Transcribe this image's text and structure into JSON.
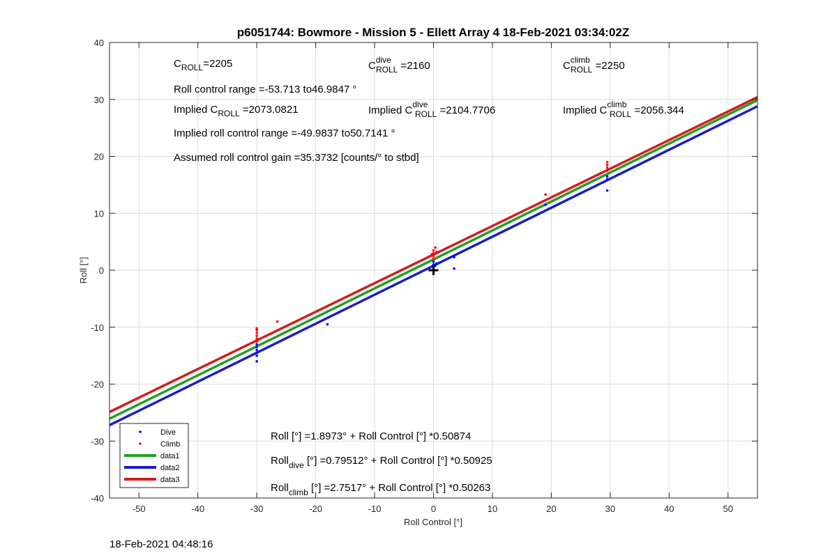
{
  "chart_data": {
    "type": "scatter",
    "title": "p6051744: Bowmore - Mission 5 - Ellett Array 4 18-Feb-2021 03:34:02Z",
    "xlabel": "Roll Control [°]",
    "ylabel": "Roll [°]",
    "xlim": [
      -55,
      55
    ],
    "ylim": [
      -40,
      40
    ],
    "xticks": [
      -50,
      -40,
      -30,
      -20,
      -10,
      0,
      10,
      20,
      30,
      40,
      50
    ],
    "yticks": [
      -40,
      -30,
      -20,
      -10,
      0,
      10,
      20,
      30,
      40
    ],
    "grid": true,
    "legend_position": "bottom-left",
    "colors": {
      "dive": "#0000ff",
      "climb": "#ff0000",
      "data1": "#20a020",
      "data2": "#1c1cc8",
      "data3": "#d41c1c",
      "marker": "#000000"
    },
    "series": [
      {
        "name": "Dive",
        "kind": "points",
        "points": [
          [
            -30,
            -15.0
          ],
          [
            -30,
            -16.0
          ],
          [
            -30,
            -14.5
          ],
          [
            -30,
            -14.0
          ],
          [
            -30,
            -13.5
          ],
          [
            -30,
            -13.0
          ],
          [
            -18,
            -9.5
          ],
          [
            0,
            0.5
          ],
          [
            0,
            1.0
          ],
          [
            0,
            1.5
          ],
          [
            0.3,
            0.8
          ],
          [
            0.5,
            1.2
          ],
          [
            3.5,
            2.3
          ],
          [
            3.5,
            0.3
          ],
          [
            19,
            11.5
          ],
          [
            29.5,
            14.0
          ],
          [
            29.5,
            16.0
          ],
          [
            29.5,
            16.5
          ]
        ]
      },
      {
        "name": "Climb",
        "kind": "points",
        "points": [
          [
            -30,
            -10.2
          ],
          [
            -30,
            -10.5
          ],
          [
            -30,
            -11.0
          ],
          [
            -30,
            -11.5
          ],
          [
            -30,
            -12.0
          ],
          [
            -30,
            -12.5
          ],
          [
            -26.5,
            -9.0
          ],
          [
            0,
            2.0
          ],
          [
            0,
            2.5
          ],
          [
            0,
            3.0
          ],
          [
            0,
            3.5
          ],
          [
            0.3,
            4.0
          ],
          [
            0.5,
            3.2
          ],
          [
            -0.3,
            2.8
          ],
          [
            19,
            13.3
          ],
          [
            29.5,
            17.5
          ],
          [
            29.5,
            18.0
          ],
          [
            29.5,
            18.5
          ],
          [
            29.5,
            19.0
          ]
        ]
      },
      {
        "name": "data1",
        "kind": "line",
        "intercept": 1.8973,
        "slope": 0.50874
      },
      {
        "name": "data2",
        "kind": "line",
        "intercept": 0.79512,
        "slope": 0.50925
      },
      {
        "name": "data3",
        "kind": "line",
        "intercept": 2.7517,
        "slope": 0.50263
      }
    ],
    "marker_point": [
      0,
      0
    ],
    "annotations": {
      "c_roll": {
        "base": "C",
        "sub": "ROLL",
        "value": "=2205"
      },
      "c_roll_dive": {
        "base": "C",
        "sup": "dive",
        "sub": "ROLL",
        "value": " =2160"
      },
      "c_roll_climb": {
        "base": "C",
        "sup": "climb",
        "sub": "ROLL",
        "value": " =2250"
      },
      "roll_range": "Roll control range =-53.713 to46.9847 °",
      "implied_c_roll": {
        "prefix": "Implied C",
        "sub": "ROLL",
        "value": " =2073.0821"
      },
      "implied_c_roll_dive": {
        "prefix": "Implied C",
        "sup": "dive",
        "sub": "ROLL",
        "value": " =2104.7706"
      },
      "implied_c_roll_climb": {
        "prefix": "Implied C",
        "sup": "climb",
        "sub": "ROLL",
        "value": " =2056.344"
      },
      "implied_range": "Implied roll control range =-49.9837 to50.7141 °",
      "gain": "Assumed roll control gain =35.3732 [counts/° to stbd]",
      "fit_all": "Roll [°] =1.8973° + Roll Control [°] *0.50874",
      "fit_dive": {
        "base": "Roll",
        "sub": "dive",
        "rest": " [°] =0.79512° + Roll Control [°] *0.50925"
      },
      "fit_climb": {
        "base": "Roll",
        "sub": "climb",
        "rest": " [°] =2.7517° + Roll Control [°] *0.50263"
      }
    },
    "legend": [
      "Dive",
      "Climb",
      "data1",
      "data2",
      "data3"
    ]
  },
  "footer": {
    "timestamp": "18-Feb-2021 04:48:16"
  }
}
